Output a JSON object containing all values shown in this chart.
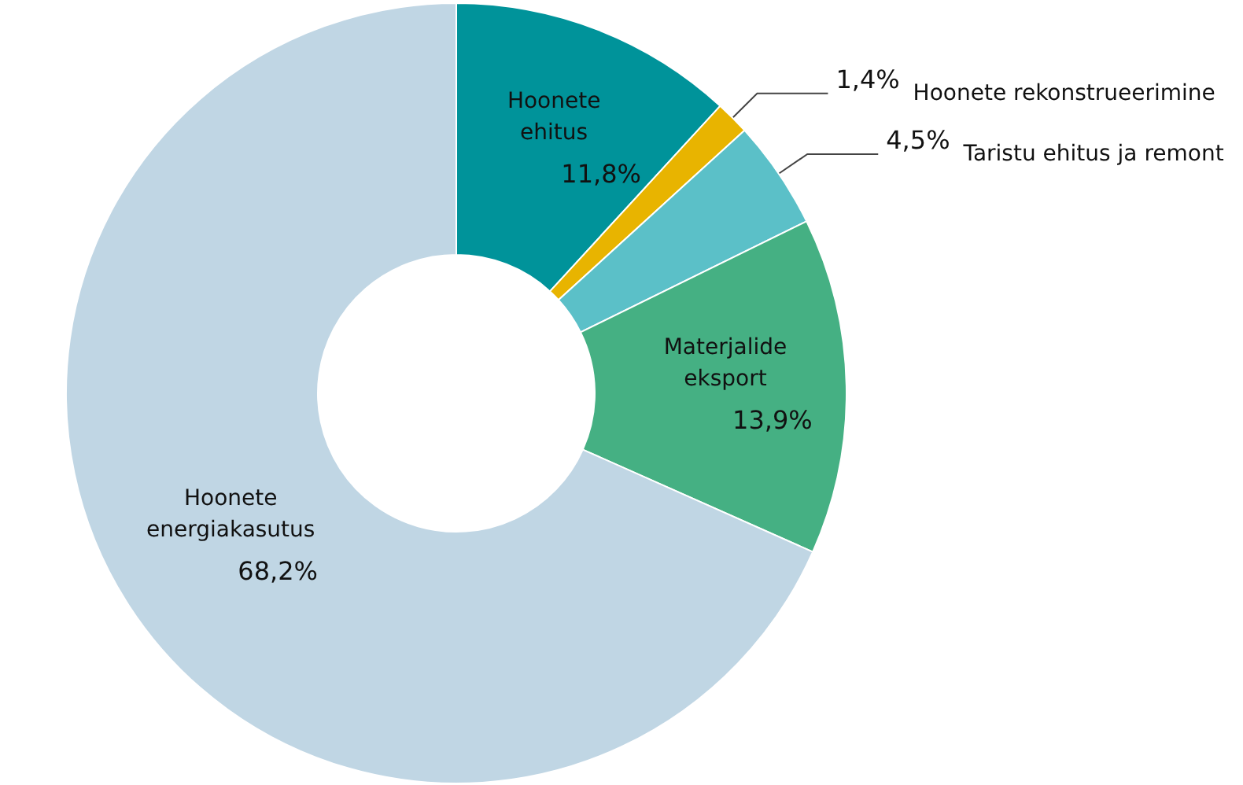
{
  "chart_data": {
    "type": "donut",
    "categories": [
      "Hoonete ehitus",
      "Hoonete rekonstrueerimine",
      "Taristu ehitus ja remont",
      "Materjalide eksport",
      "Hoonete energiakasutus"
    ],
    "values": [
      11.8,
      1.4,
      4.5,
      13.9,
      68.2
    ],
    "value_labels": [
      "11,8%",
      "1,4%",
      "4,5%",
      "13,9%",
      "68,2%"
    ],
    "colors": [
      "#00939a",
      "#e8b400",
      "#5bc0c8",
      "#45b083",
      "#c0d6e4"
    ],
    "legend": false
  }
}
